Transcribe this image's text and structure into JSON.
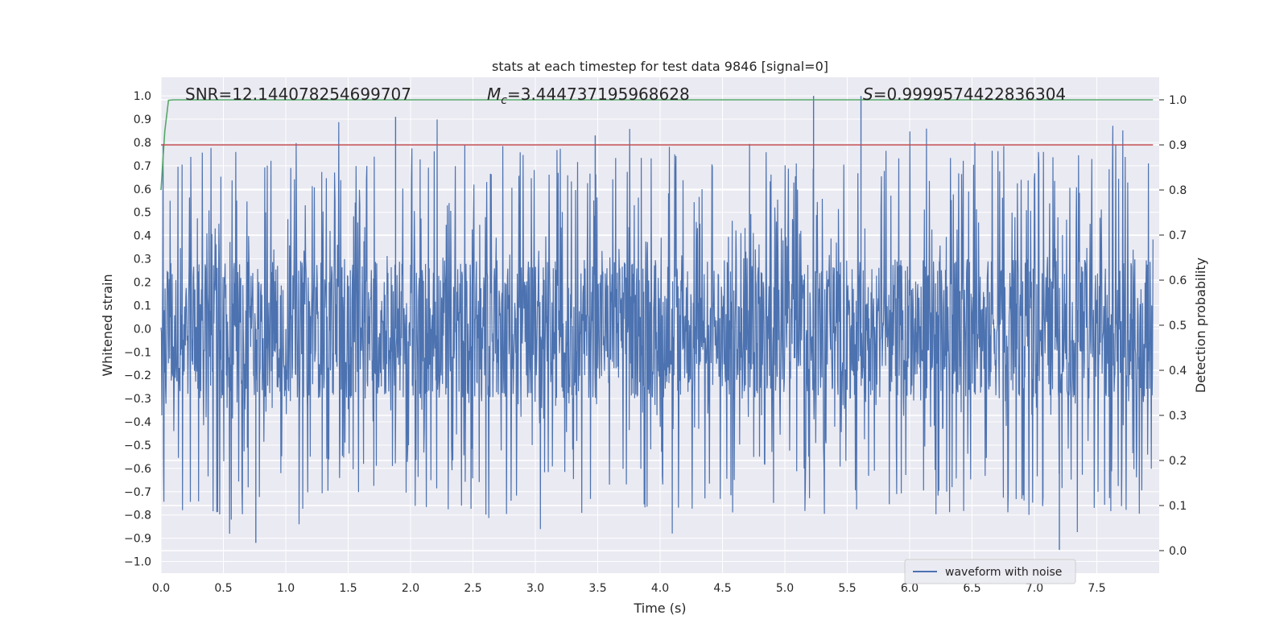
{
  "chart_data": {
    "type": "line",
    "title": "stats at each timestep for test data 9846 [signal=0]",
    "xlabel": "Time (s)",
    "ylabel": "Whitened strain",
    "ylabel_right": "Detection probability",
    "xlim": [
      0.0,
      8.0
    ],
    "ylim": [
      -1.05,
      1.08
    ],
    "ylim_right": [
      -0.05,
      1.05
    ],
    "x_ticks": [
      "0.0",
      "0.5",
      "1.0",
      "1.5",
      "2.0",
      "2.5",
      "3.0",
      "3.5",
      "4.0",
      "4.5",
      "5.0",
      "5.5",
      "6.0",
      "6.5",
      "7.0",
      "7.5"
    ],
    "y_ticks": [
      "1.0",
      "0.9",
      "0.8",
      "0.7",
      "0.6",
      "0.5",
      "0.4",
      "0.3",
      "0.2",
      "0.1",
      "0.0",
      "-0.1",
      "-0.2",
      "-0.3",
      "-0.4",
      "-0.5",
      "-0.6",
      "-0.7",
      "-0.8",
      "-0.9",
      "-1.0"
    ],
    "y_ticks_right": [
      "1.0",
      "0.9",
      "0.8",
      "0.7",
      "0.6",
      "0.5",
      "0.4",
      "0.3",
      "0.2",
      "0.1",
      "0.0"
    ],
    "grid": true,
    "legend_position": "lower-center-right",
    "annotations": {
      "snr": "SNR=12.144078254699707",
      "mc_prefix": "M",
      "mc_sub": "c",
      "mc_value": "=3.444737195968628",
      "s_prefix": "S",
      "s_value": "=0.9999574422836304"
    },
    "series": [
      {
        "name": "waveform with noise",
        "axis": "left",
        "color": "#4c72b0",
        "description_envelope": {
          "typical_upper": 0.45,
          "typical_lower": -0.45,
          "peak_max": 1.0,
          "peak_min": -0.95
        }
      },
      {
        "axis": "right",
        "color": "#55a868",
        "x": [
          0.0,
          0.03,
          0.06,
          0.1,
          7.95
        ],
        "y": [
          0.8,
          0.93,
          0.999,
          1.0,
          1.0
        ]
      },
      {
        "axis": "right",
        "color": "#c44e52",
        "x": [
          0.0,
          7.95
        ],
        "y": [
          0.9,
          0.9
        ]
      }
    ]
  },
  "colors": {
    "background": "#eaeaf2",
    "grid": "#ffffff",
    "waveform": "#4c72b0",
    "probability": "#55a868",
    "threshold": "#c44e52"
  }
}
